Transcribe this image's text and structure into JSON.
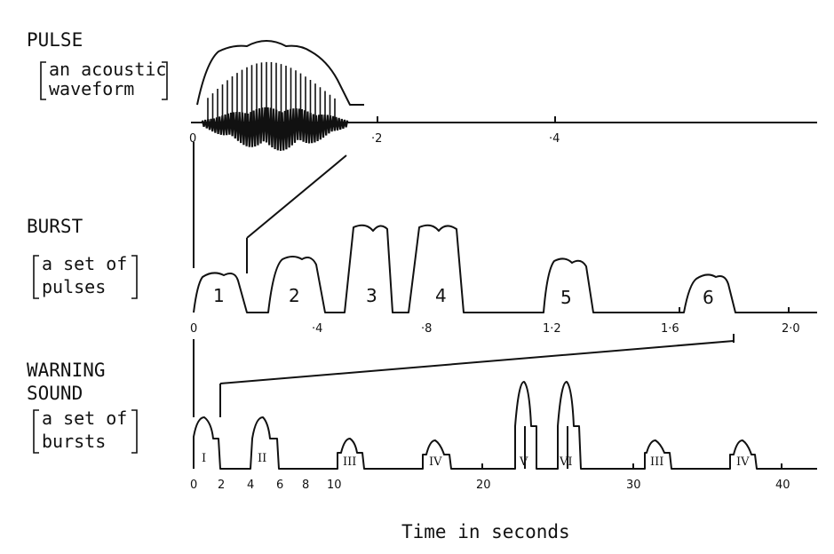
{
  "rows": {
    "pulse": {
      "title": "PULSE",
      "desc1": "an acoustic",
      "desc2": "waveform",
      "ticks": [
        "0",
        "·2",
        "·4"
      ]
    },
    "burst": {
      "title": "BURST",
      "desc1": "a set of",
      "desc2": "pulses",
      "ticks": [
        "0",
        "·4",
        "·8",
        "1·2",
        "1·6",
        "2·0"
      ],
      "pulse_labels": [
        "1",
        "2",
        "3",
        "4",
        "5",
        "6"
      ]
    },
    "warning": {
      "title1": "WARNING",
      "title2": "SOUND",
      "desc1": "a set of",
      "desc2": "bursts",
      "ticks": [
        "0",
        "2",
        "4",
        "6",
        "8",
        "10",
        "20",
        "30",
        "40"
      ],
      "burst_labels": [
        "I",
        "II",
        "III",
        "IV",
        "V",
        "VI",
        "III",
        "IV"
      ]
    }
  },
  "xaxis_title": "Time in seconds"
}
